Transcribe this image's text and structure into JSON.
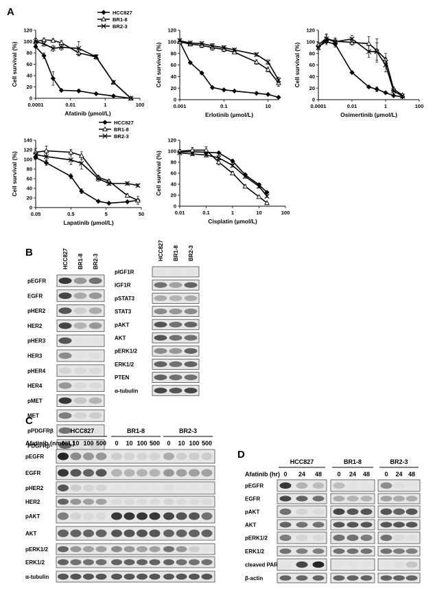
{
  "panels": {
    "A": "A",
    "B": "B",
    "C": "C",
    "D": "D"
  },
  "chart_data": [
    {
      "type": "line",
      "xscale": "log",
      "xlabel": "Afatinib (µmol/L)",
      "ylabel": "Cell survival (%)",
      "xticks": [
        0.0001,
        0.01,
        1,
        100
      ],
      "xtick_labels": [
        "0.0001",
        "0.01",
        "1",
        "100"
      ],
      "xlim": [
        0.0001,
        100
      ],
      "ylim": [
        0,
        120
      ],
      "yticks": [
        0,
        20,
        40,
        60,
        80,
        100,
        120
      ],
      "legend": "top-right",
      "series": [
        {
          "name": "HCC827",
          "marker": "diamond",
          "x": [
            0.0001,
            0.0003,
            0.001,
            0.003,
            0.03,
            0.3,
            3,
            30
          ],
          "y": [
            91,
            75,
            35,
            14,
            13,
            8,
            4,
            0
          ],
          "err": [
            0,
            5,
            12,
            2,
            2,
            1,
            1,
            0
          ]
        },
        {
          "name": "BR1-8",
          "marker": "triangle",
          "x": [
            0.0001,
            0.0003,
            0.001,
            0.003,
            0.03,
            0.3,
            3,
            30
          ],
          "y": [
            100,
            103,
            102,
            98,
            80,
            73,
            28,
            0
          ],
          "err": [
            5,
            3,
            3,
            4,
            5,
            3,
            3,
            0
          ]
        },
        {
          "name": "BR2-3",
          "marker": "cross",
          "x": [
            0.0001,
            0.0003,
            0.001,
            0.003,
            0.03,
            0.3,
            3,
            30
          ],
          "y": [
            100,
            96,
            88,
            90,
            88,
            73,
            28,
            0
          ],
          "err": [
            6,
            4,
            5,
            5,
            12,
            4,
            3,
            0
          ]
        }
      ]
    },
    {
      "type": "line",
      "xscale": "log",
      "xlabel": "Erlotinib (µmol/L)",
      "ylabel": "Cell survival (%)",
      "xticks": [
        0.001,
        0.1,
        10
      ],
      "xtick_labels": [
        "0.001",
        "0.1",
        "10"
      ],
      "xlim": [
        0.001,
        30
      ],
      "ylim": [
        0,
        120
      ],
      "yticks": [
        0,
        20,
        40,
        60,
        80,
        100,
        120
      ],
      "series": [
        {
          "name": "HCC827",
          "marker": "diamond",
          "x": [
            0.001,
            0.003,
            0.01,
            0.03,
            0.1,
            0.3,
            3,
            10,
            30
          ],
          "y": [
            100,
            64,
            46,
            21,
            17,
            15,
            11,
            9,
            4
          ],
          "err": [
            0,
            2,
            2,
            2,
            1,
            1,
            1,
            1,
            1
          ]
        },
        {
          "name": "BR1-8",
          "marker": "triangle",
          "x": [
            0.001,
            0.003,
            0.01,
            0.03,
            0.1,
            0.3,
            3,
            10,
            30
          ],
          "y": [
            100,
            96,
            94,
            90,
            87,
            82,
            65,
            52,
            29
          ],
          "err": [
            3,
            3,
            4,
            5,
            4,
            3,
            4,
            4,
            6
          ]
        },
        {
          "name": "BR2-3",
          "marker": "cross",
          "x": [
            0.001,
            0.003,
            0.01,
            0.03,
            0.1,
            0.3,
            3,
            10,
            30
          ],
          "y": [
            102,
            98,
            97,
            93,
            90,
            86,
            78,
            65,
            34
          ],
          "err": [
            3,
            3,
            3,
            4,
            3,
            3,
            3,
            4,
            5
          ]
        }
      ]
    },
    {
      "type": "line",
      "xscale": "log",
      "xlabel": "Osimertinib (µmol/L)",
      "ylabel": "Cell survival (%)",
      "xticks": [
        0.0001,
        0.01,
        1,
        100
      ],
      "xtick_labels": [
        "0.0001",
        "0.01",
        "1",
        "100"
      ],
      "xlim": [
        0.0001,
        100
      ],
      "ylim": [
        0,
        120
      ],
      "yticks": [
        0,
        20,
        40,
        60,
        80,
        100,
        120
      ],
      "series": [
        {
          "name": "HCC827",
          "marker": "diamond",
          "x": [
            0.0001,
            0.0003,
            0.001,
            0.01,
            0.1,
            0.3,
            1,
            3,
            10
          ],
          "y": [
            92,
            100,
            96,
            47,
            22,
            18,
            12,
            7,
            5
          ],
          "err": [
            3,
            5,
            5,
            2,
            2,
            4,
            2,
            1,
            1
          ]
        },
        {
          "name": "BR1-8",
          "marker": "triangle",
          "x": [
            0.0001,
            0.0003,
            0.001,
            0.01,
            0.1,
            0.3,
            1,
            3,
            10
          ],
          "y": [
            95,
            106,
            101,
            99,
            97,
            85,
            70,
            18,
            8
          ],
          "err": [
            4,
            8,
            6,
            5,
            12,
            20,
            10,
            4,
            2
          ]
        },
        {
          "name": "BR2-3",
          "marker": "cross",
          "x": [
            0.0001,
            0.0003,
            0.001,
            0.01,
            0.1,
            0.3,
            1,
            3,
            10
          ],
          "y": [
            90,
            105,
            100,
            105,
            83,
            83,
            60,
            15,
            6
          ],
          "err": [
            4,
            7,
            5,
            6,
            10,
            15,
            12,
            4,
            2
          ]
        }
      ]
    },
    {
      "type": "line",
      "xscale": "log",
      "xlabel": "Lapatinib (µmol/L)",
      "ylabel": "Cell survival (%)",
      "xticks": [
        0.05,
        0.5,
        5,
        50
      ],
      "xtick_labels": [
        "0.05",
        "0.5",
        "5",
        "50"
      ],
      "xlim": [
        0.05,
        50
      ],
      "ylim": [
        0,
        140
      ],
      "yticks": [
        0,
        20,
        40,
        60,
        80,
        100,
        120,
        140
      ],
      "legend": "top-right",
      "series": [
        {
          "name": "HCC827",
          "marker": "diamond",
          "x": [
            0.05,
            0.1,
            0.5,
            1,
            3,
            6,
            20,
            40
          ],
          "y": [
            104,
            93,
            65,
            34,
            13,
            9,
            12,
            15
          ],
          "err": [
            3,
            5,
            5,
            5,
            2,
            1,
            2,
            3
          ]
        },
        {
          "name": "BR1-8",
          "marker": "triangle",
          "x": [
            0.05,
            0.1,
            0.5,
            1,
            3,
            6,
            20,
            40
          ],
          "y": [
            115,
            118,
            115,
            108,
            63,
            55,
            25,
            15
          ],
          "err": [
            8,
            10,
            6,
            8,
            4,
            3,
            4,
            8
          ]
        },
        {
          "name": "BR2-3",
          "marker": "cross",
          "x": [
            0.05,
            0.1,
            0.5,
            1,
            3,
            6,
            20,
            40
          ],
          "y": [
            110,
            106,
            99,
            92,
            60,
            50,
            50,
            46
          ],
          "err": [
            5,
            6,
            10,
            12,
            5,
            4,
            3,
            3
          ]
        }
      ]
    },
    {
      "type": "line",
      "xscale": "log",
      "xlabel": "Cisplatin (µmol/L)",
      "ylabel": "Cell survival (%)",
      "xticks": [
        0.01,
        0.1,
        1,
        10,
        100
      ],
      "xtick_labels": [
        "0.01",
        "0.1",
        "1",
        "10",
        "100"
      ],
      "xlim": [
        0.01,
        100
      ],
      "ylim": [
        0,
        120
      ],
      "yticks": [
        0,
        20,
        40,
        60,
        80,
        100,
        120
      ],
      "series": [
        {
          "name": "HCC827",
          "marker": "diamond",
          "x": [
            0.01,
            0.03,
            0.1,
            0.3,
            1,
            3,
            10,
            20
          ],
          "y": [
            99,
            99,
            98,
            97,
            82,
            57,
            39,
            25
          ],
          "err": [
            2,
            2,
            2,
            2,
            3,
            3,
            3,
            2
          ]
        },
        {
          "name": "BR1-8",
          "marker": "triangle",
          "x": [
            0.01,
            0.03,
            0.1,
            0.3,
            1,
            3,
            10,
            20
          ],
          "y": [
            100,
            102,
            102,
            80,
            60,
            36,
            17,
            6
          ],
          "err": [
            3,
            5,
            6,
            5,
            3,
            3,
            2,
            1
          ]
        },
        {
          "name": "BR2-3",
          "marker": "cross",
          "x": [
            0.01,
            0.03,
            0.1,
            0.3,
            1,
            3,
            10,
            20
          ],
          "y": [
            97,
            95,
            93,
            88,
            74,
            54,
            36,
            18
          ],
          "err": [
            2,
            3,
            4,
            4,
            3,
            3,
            3,
            2
          ]
        }
      ]
    }
  ],
  "blot_B_left": {
    "lanes": [
      "HCC827",
      "BR1-8",
      "BR2-3"
    ],
    "rows": [
      {
        "label": "pEGFR",
        "intensity": [
          0.9,
          0.55,
          0.7
        ]
      },
      {
        "label": "EGFR",
        "intensity": [
          0.85,
          0.45,
          0.55
        ]
      },
      {
        "label": "pHER2",
        "intensity": [
          0.8,
          0.25,
          0.45
        ]
      },
      {
        "label": "HER2",
        "intensity": [
          0.85,
          0.4,
          0.55
        ]
      },
      {
        "label": "pHER3",
        "intensity": [
          0.8,
          0.05,
          0.05
        ]
      },
      {
        "label": "HER3",
        "intensity": [
          0.6,
          0.05,
          0.1
        ]
      },
      {
        "label": "pHER4",
        "intensity": [
          0.2,
          0.15,
          0.15
        ]
      },
      {
        "label": "HER4",
        "intensity": [
          0.55,
          0.15,
          0.15
        ]
      },
      {
        "label": "pMET",
        "intensity": [
          0.9,
          0.3,
          0.4
        ]
      },
      {
        "label": "MET",
        "intensity": [
          0.65,
          0.2,
          0.25
        ]
      },
      {
        "label": "pPDGFRβ",
        "intensity": [
          0.7,
          0.05,
          0.05
        ]
      },
      {
        "label": "PDGFRβ",
        "intensity": [
          0.75,
          0.1,
          0.2
        ]
      }
    ]
  },
  "blot_B_right": {
    "lanes": [
      "HCC827",
      "BR1-8",
      "BR2-3"
    ],
    "rows": [
      {
        "label": "pIGF1R",
        "intensity": [
          0.05,
          0.05,
          0.05
        ]
      },
      {
        "label": "IGF1R",
        "intensity": [
          0.7,
          0.5,
          0.75
        ]
      },
      {
        "label": "pSTAT3",
        "intensity": [
          0.45,
          0.4,
          0.45
        ]
      },
      {
        "label": "STAT3",
        "intensity": [
          0.6,
          0.55,
          0.6
        ]
      },
      {
        "label": "pAKT",
        "intensity": [
          0.8,
          0.7,
          0.75
        ]
      },
      {
        "label": "AKT",
        "intensity": [
          0.8,
          0.7,
          0.7
        ]
      },
      {
        "label": "pERK1/2",
        "intensity": [
          0.6,
          0.55,
          0.75
        ]
      },
      {
        "label": "ERK1/2",
        "intensity": [
          0.75,
          0.7,
          0.75
        ]
      },
      {
        "label": "PTEN",
        "intensity": [
          0.75,
          0.7,
          0.7
        ]
      },
      {
        "label": "α-tubulin",
        "intensity": [
          0.85,
          0.8,
          0.85
        ]
      }
    ]
  },
  "blot_C": {
    "dose_title": "Afatinib (nmol/L)",
    "groups": [
      {
        "name": "HCC827",
        "doses": [
          "0",
          "10",
          "100",
          "500"
        ]
      },
      {
        "name": "BR1-8",
        "doses": [
          "0",
          "10",
          "100",
          "500"
        ]
      },
      {
        "name": "BR2-3",
        "doses": [
          "0",
          "10",
          "100",
          "500"
        ]
      }
    ],
    "rows": [
      {
        "label": "pEGFR",
        "intensity": [
          0.95,
          0.6,
          0.55,
          0.55,
          0.25,
          0.2,
          0.2,
          0.2,
          0.45,
          0.25,
          0.25,
          0.25
        ]
      },
      {
        "label": "EGFR",
        "intensity": [
          0.9,
          0.8,
          0.75,
          0.8,
          0.4,
          0.4,
          0.4,
          0.4,
          0.55,
          0.5,
          0.5,
          0.5
        ]
      },
      {
        "label": "pHER2",
        "intensity": [
          0.8,
          0.25,
          0.2,
          0.2,
          0.05,
          0.05,
          0.05,
          0.05,
          0.1,
          0.05,
          0.05,
          0.05
        ]
      },
      {
        "label": "HER2",
        "intensity": [
          0.75,
          0.55,
          0.5,
          0.5,
          0.15,
          0.15,
          0.15,
          0.15,
          0.2,
          0.15,
          0.15,
          0.15
        ]
      },
      {
        "label": "pAKT",
        "intensity": [
          0.65,
          0.2,
          0.15,
          0.15,
          0.9,
          0.9,
          0.9,
          0.9,
          0.85,
          0.8,
          0.8,
          0.7
        ]
      },
      {
        "label": "AKT",
        "intensity": [
          0.75,
          0.75,
          0.75,
          0.75,
          0.8,
          0.8,
          0.8,
          0.8,
          0.75,
          0.75,
          0.75,
          0.75
        ]
      },
      {
        "label": "pERK1/2",
        "intensity": [
          0.75,
          0.55,
          0.5,
          0.5,
          0.6,
          0.55,
          0.5,
          0.5,
          0.7,
          0.55,
          0.25,
          0.05
        ]
      },
      {
        "label": "ERK1/2",
        "intensity": [
          0.75,
          0.7,
          0.7,
          0.7,
          0.75,
          0.75,
          0.75,
          0.75,
          0.75,
          0.7,
          0.7,
          0.7
        ]
      },
      {
        "label": "α-tubulin",
        "intensity": [
          0.8,
          0.8,
          0.8,
          0.8,
          0.8,
          0.8,
          0.8,
          0.8,
          0.8,
          0.8,
          0.8,
          0.8
        ]
      }
    ]
  },
  "blot_D": {
    "time_title": "Afatinib (hr)",
    "groups": [
      {
        "name": "HCC827",
        "times": [
          "0",
          "24",
          "48"
        ]
      },
      {
        "name": "BR1-8",
        "times": [
          "0",
          "24",
          "48"
        ]
      },
      {
        "name": "BR2-3",
        "times": [
          "0",
          "24",
          "48"
        ]
      }
    ],
    "rows": [
      {
        "label": "pEGFR",
        "intensity": [
          0.9,
          0.4,
          0.35,
          0.35,
          0.05,
          0.05,
          0.6,
          0.1,
          0.05
        ]
      },
      {
        "label": "EGFR",
        "intensity": [
          0.85,
          0.75,
          0.7,
          0.45,
          0.4,
          0.4,
          0.5,
          0.45,
          0.45
        ]
      },
      {
        "label": "pAKT",
        "intensity": [
          0.7,
          0.2,
          0.15,
          0.85,
          0.8,
          0.8,
          0.8,
          0.75,
          0.8
        ]
      },
      {
        "label": "AKT",
        "intensity": [
          0.75,
          0.7,
          0.7,
          0.8,
          0.8,
          0.8,
          0.8,
          0.8,
          0.8
        ]
      },
      {
        "label": "pERK1/2",
        "intensity": [
          0.65,
          0.2,
          0.15,
          0.7,
          0.7,
          0.65,
          0.7,
          0.15,
          0.1
        ]
      },
      {
        "label": "ERK1/2",
        "intensity": [
          0.7,
          0.65,
          0.65,
          0.7,
          0.7,
          0.7,
          0.7,
          0.65,
          0.65
        ]
      },
      {
        "label": "cleaved PARP",
        "intensity": [
          0.05,
          0.85,
          0.95,
          0.05,
          0.05,
          0.05,
          0.05,
          0.1,
          0.3
        ]
      },
      {
        "label": "β-actin",
        "intensity": [
          0.75,
          0.75,
          0.75,
          0.75,
          0.75,
          0.75,
          0.75,
          0.75,
          0.75
        ]
      }
    ]
  }
}
